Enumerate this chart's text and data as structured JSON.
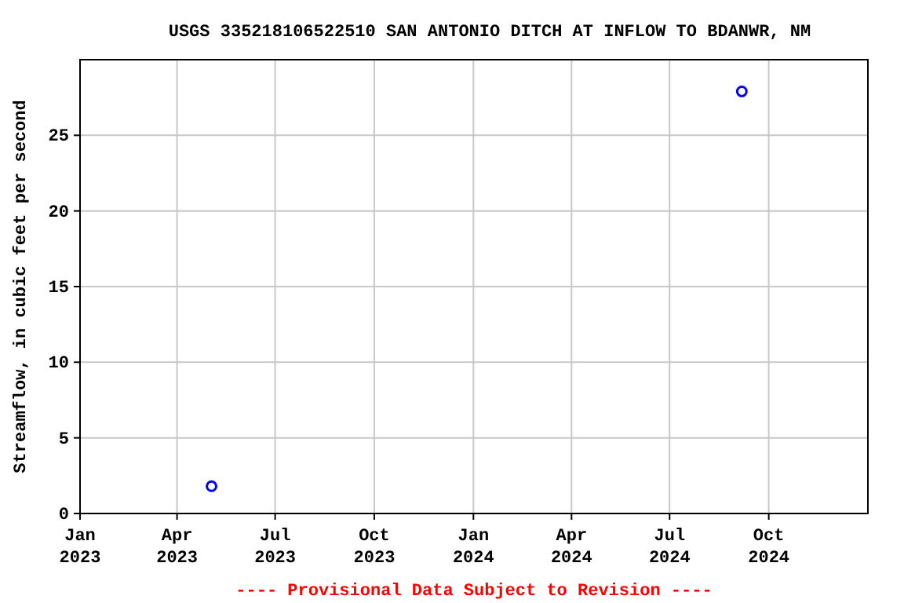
{
  "chart_data": {
    "type": "scatter",
    "title": "USGS 335218106522510 SAN ANTONIO DITCH AT INFLOW TO BDANWR, NM",
    "ylabel": "Streamflow, in cubic feet per second",
    "x": [
      "2023-05-03",
      "2024-09-06"
    ],
    "series": [
      {
        "color": "#0000ff",
        "values": [
          1.8,
          27.9
        ]
      }
    ],
    "xlim": [
      "2023-01-01",
      "2025-01-01"
    ],
    "xticks": [
      {
        "value": "2023-01-01",
        "label": "Jan 2023"
      },
      {
        "value": "2023-04-01",
        "label": "Apr 2023"
      },
      {
        "value": "2023-07-01",
        "label": "Jul 2023"
      },
      {
        "value": "2023-10-01",
        "label": "Oct 2023"
      },
      {
        "value": "2024-01-01",
        "label": "Jan 2024"
      },
      {
        "value": "2024-04-01",
        "label": "Apr 2024"
      },
      {
        "value": "2024-07-01",
        "label": "Jul 2024"
      },
      {
        "value": "2024-10-01",
        "label": "Oct 2024"
      }
    ],
    "ylim": [
      0,
      30
    ],
    "yticks": [
      0,
      5,
      10,
      15,
      20,
      25
    ],
    "grid": true,
    "marker": "circle",
    "annotations": [
      "---- Provisional Data Subject to Revision ----"
    ]
  }
}
